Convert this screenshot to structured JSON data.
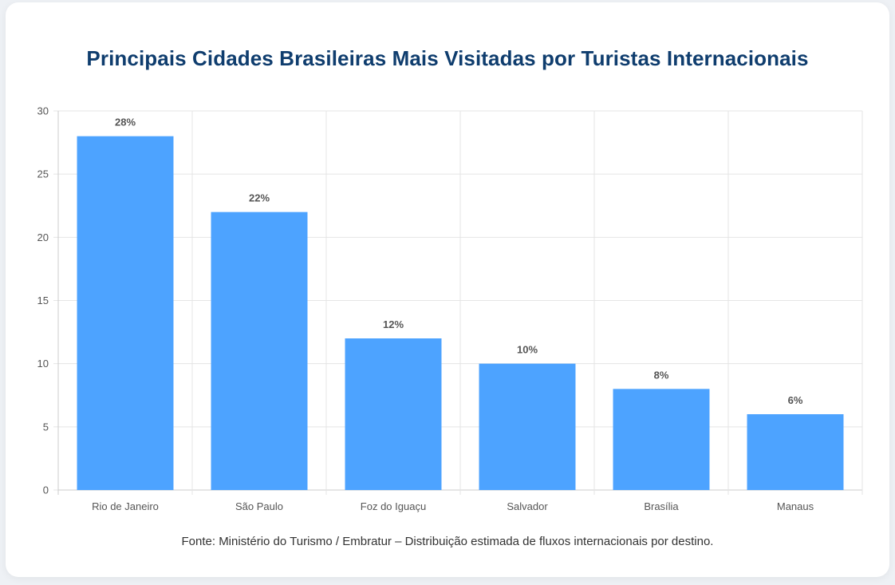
{
  "title": "Principais Cidades Brasileiras Mais Visitadas por Turistas Internacionais",
  "source_note": "Fonte: Ministério do Turismo / Embratur – Distribuição estimada de fluxos internacionais por destino.",
  "colors": {
    "bar": "#4da3ff",
    "title": "#0f3d6e",
    "grid": "#e5e5e5",
    "axis": "#cccccc"
  },
  "chart_data": {
    "type": "bar",
    "categories": [
      "Rio de Janeiro",
      "São Paulo",
      "Foz do Iguaçu",
      "Salvador",
      "Brasília",
      "Manaus"
    ],
    "values": [
      28,
      22,
      12,
      10,
      8,
      6
    ],
    "data_labels": [
      "28%",
      "22%",
      "12%",
      "10%",
      "8%",
      "6%"
    ],
    "ylim": [
      0,
      30
    ],
    "yticks": [
      0,
      5,
      10,
      15,
      20,
      25,
      30
    ],
    "xlabel": "",
    "ylabel": "",
    "grid": true,
    "legend": "none"
  }
}
